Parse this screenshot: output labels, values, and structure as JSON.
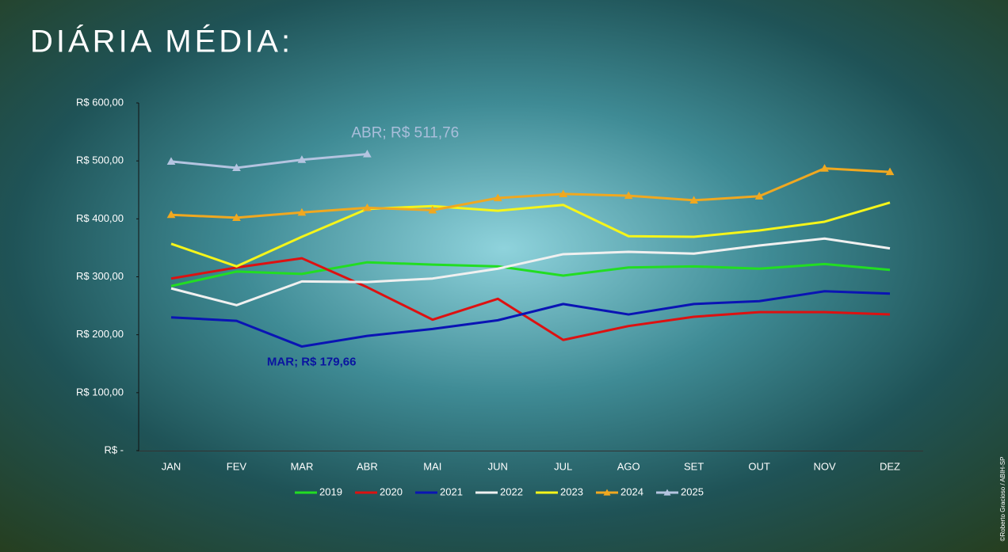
{
  "chart_data": {
    "type": "line",
    "title": "DIÁRIA MÉDIA:",
    "watermark": "©Roberto Gracioso / ABIH-SP",
    "categories": [
      "JAN",
      "FEV",
      "MAR",
      "ABR",
      "MAI",
      "JUN",
      "JUL",
      "AGO",
      "SET",
      "OUT",
      "NOV",
      "DEZ"
    ],
    "ylim": [
      0,
      600
    ],
    "yticks": [
      {
        "value": 0,
        "label": "R$ -"
      },
      {
        "value": 100,
        "label": "R$ 100,00"
      },
      {
        "value": 200,
        "label": "R$ 200,00"
      },
      {
        "value": 300,
        "label": "R$ 300,00"
      },
      {
        "value": 400,
        "label": "R$ 400,00"
      },
      {
        "value": 500,
        "label": "R$ 500,00"
      },
      {
        "value": 600,
        "label": "R$ 600,00"
      }
    ],
    "legend": "bottom",
    "series": [
      {
        "name": "2019",
        "color": "#22dd22",
        "values": [
          284,
          309,
          305,
          325,
          321,
          318,
          302,
          316,
          318,
          314,
          322,
          312
        ]
      },
      {
        "name": "2020",
        "color": "#dd1111",
        "values": [
          297,
          316,
          332,
          282,
          226,
          262,
          191,
          215,
          231,
          239,
          239,
          235
        ]
      },
      {
        "name": "2021",
        "color": "#0a14b4",
        "values": [
          230,
          224,
          179.66,
          198,
          210,
          225,
          253,
          235,
          253,
          258,
          275,
          271
        ]
      },
      {
        "name": "2022",
        "color": "#f0f0f0",
        "values": [
          280,
          251,
          292,
          291,
          297,
          314,
          339,
          343,
          340,
          354,
          366,
          349
        ]
      },
      {
        "name": "2023",
        "color": "#f5f51a",
        "values": [
          357,
          318,
          369,
          417,
          422,
          414,
          424,
          370,
          369,
          380,
          395,
          428
        ]
      },
      {
        "name": "2024",
        "color": "#f0a820",
        "marker": "triangle",
        "values": [
          407,
          402,
          411,
          419,
          415,
          436,
          443,
          440,
          432,
          439,
          487,
          481
        ]
      },
      {
        "name": "2025",
        "color": "#b4c4e0",
        "marker": "triangle",
        "values": [
          499,
          488,
          502,
          511.76,
          null,
          null,
          null,
          null,
          null,
          null,
          null,
          null
        ]
      }
    ],
    "annotations": [
      {
        "text": "ABR;  R$ 511,76",
        "series": 6,
        "index": 3,
        "color": "#a9bedb"
      },
      {
        "text": "MAR;  R$ 179,66",
        "series": 2,
        "index": 2,
        "color": "#0a14a0"
      }
    ]
  }
}
